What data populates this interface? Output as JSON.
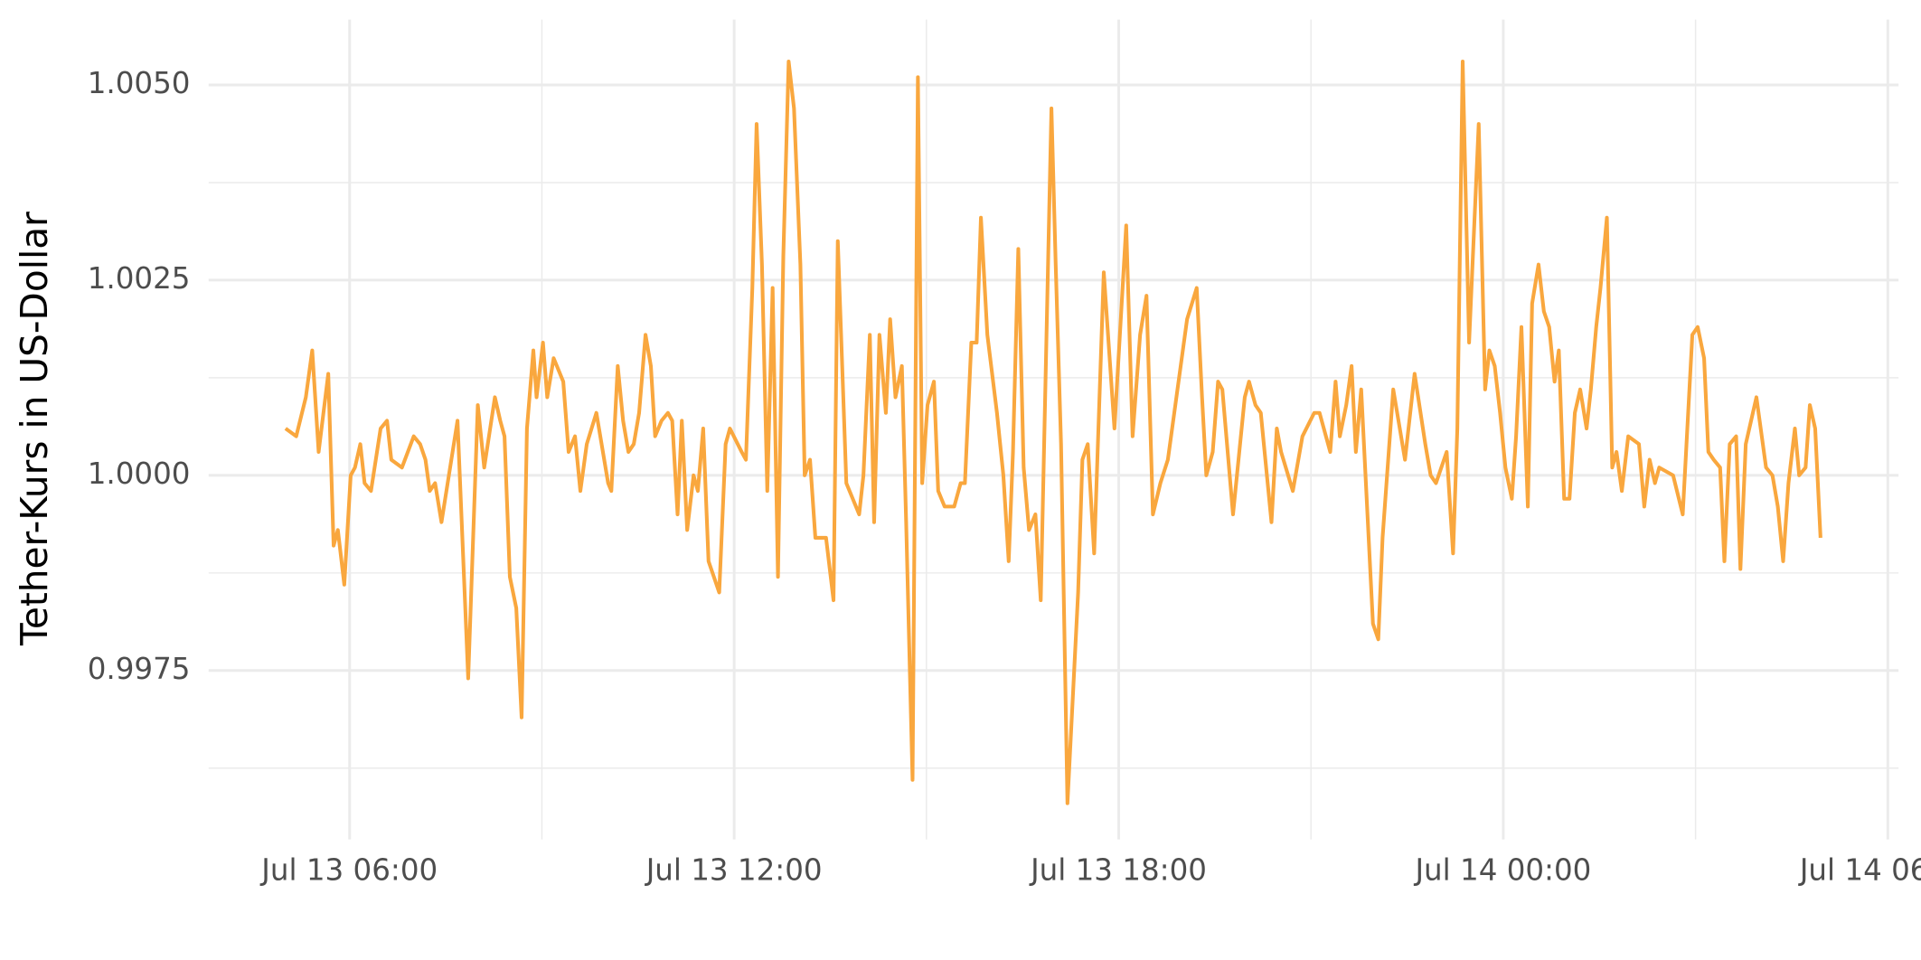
{
  "chart_data": {
    "type": "line",
    "ylabel": "Tether-Kurs in US-Dollar",
    "color": "#f9a73e",
    "grid": true,
    "xlim": [
      "Jul 13 03:48",
      "Jul 14 06:10"
    ],
    "xticks": [
      "Jul 13 06:00",
      "Jul 13 12:00",
      "Jul 13 18:00",
      "Jul 14 00:00",
      "Jul 14 06:00"
    ],
    "xminor": [
      "Jul 13 09:00",
      "Jul 13 15:00",
      "Jul 13 21:00",
      "Jul 14 03:00"
    ],
    "ylim": [
      0.9954,
      1.0059
    ],
    "yticks": [
      0.9975,
      {
        "value": 1.0,
        "label": "1.0000"
      },
      1.0025,
      {
        "value": 1.005,
        "label": "1.0050"
      }
    ],
    "yminor": [
      0.99625,
      0.99875,
      1.00125,
      1.00375
    ],
    "x": [
      "Jul 13 05:00",
      "Jul 13 05:10",
      "Jul 13 05:19",
      "Jul 13 05:25",
      "Jul 13 05:31",
      "Jul 13 05:40",
      "Jul 13 05:45",
      "Jul 13 05:49",
      "Jul 13 05:55",
      "Jul 13 06:01",
      "Jul 13 06:05",
      "Jul 13 06:10",
      "Jul 13 06:14",
      "Jul 13 06:20",
      "Jul 13 06:29",
      "Jul 13 06:35",
      "Jul 13 06:39",
      "Jul 13 06:49",
      "Jul 13 07:00",
      "Jul 13 07:06",
      "Jul 13 07:11",
      "Jul 13 07:15",
      "Jul 13 07:20",
      "Jul 13 07:26",
      "Jul 13 07:41",
      "Jul 13 07:51",
      "Jul 13 08:00",
      "Jul 13 08:06",
      "Jul 13 08:16",
      "Jul 13 08:21",
      "Jul 13 08:25",
      "Jul 13 08:30",
      "Jul 13 08:36",
      "Jul 13 08:41",
      "Jul 13 08:46",
      "Jul 13 08:52",
      "Jul 13 08:55",
      "Jul 13 09:01",
      "Jul 13 09:05",
      "Jul 13 09:11",
      "Jul 13 09:20",
      "Jul 13 09:25",
      "Jul 13 09:31",
      "Jul 13 09:36",
      "Jul 13 09:42",
      "Jul 13 09:51",
      "Jul 13 10:02",
      "Jul 13 10:05",
      "Jul 13 10:11",
      "Jul 13 10:16",
      "Jul 13 10:21",
      "Jul 13 10:26",
      "Jul 13 10:31",
      "Jul 13 10:37",
      "Jul 13 10:42",
      "Jul 13 10:46",
      "Jul 13 10:52",
      "Jul 13 10:58",
      "Jul 13 11:02",
      "Jul 13 11:07",
      "Jul 13 11:11",
      "Jul 13 11:16",
      "Jul 13 11:22",
      "Jul 13 11:26",
      "Jul 13 11:31",
      "Jul 13 11:36",
      "Jul 13 11:46",
      "Jul 13 11:52",
      "Jul 13 11:56",
      "Jul 13 12:07",
      "Jul 13 12:11",
      "Jul 13 12:17",
      "Jul 13 12:21",
      "Jul 13 12:26",
      "Jul 13 12:31",
      "Jul 13 12:36",
      "Jul 13 12:41",
      "Jul 13 12:46",
      "Jul 13 12:51",
      "Jul 13 12:56",
      "Jul 13 13:02",
      "Jul 13 13:06",
      "Jul 13 13:11",
      "Jul 13 13:16",
      "Jul 13 13:26",
      "Jul 13 13:33",
      "Jul 13 13:37",
      "Jul 13 13:45",
      "Jul 13 13:57",
      "Jul 13 14:01",
      "Jul 13 14:07",
      "Jul 13 14:11",
      "Jul 13 14:16",
      "Jul 13 14:22",
      "Jul 13 14:26",
      "Jul 13 14:31",
      "Jul 13 14:37",
      "Jul 13 14:41",
      "Jul 13 14:47",
      "Jul 13 14:52",
      "Jul 13 14:56",
      "Jul 13 15:01",
      "Jul 13 15:07",
      "Jul 13 15:11",
      "Jul 13 15:17",
      "Jul 13 15:26",
      "Jul 13 15:32",
      "Jul 13 15:36",
      "Jul 13 15:42",
      "Jul 13 15:47",
      "Jul 13 15:51",
      "Jul 13 15:57",
      "Jul 13 16:06",
      "Jul 13 16:12",
      "Jul 13 16:17",
      "Jul 13 16:21",
      "Jul 13 16:26",
      "Jul 13 16:31",
      "Jul 13 16:36",
      "Jul 13 16:42",
      "Jul 13 16:47",
      "Jul 13 16:57",
      "Jul 13 17:01",
      "Jul 13 17:06",
      "Jul 13 17:12",
      "Jul 13 17:22",
      "Jul 13 17:26",
      "Jul 13 17:31",
      "Jul 13 17:37",
      "Jul 13 17:46",
      "Jul 13 17:56",
      "Jul 13 18:07",
      "Jul 13 18:13",
      "Jul 13 18:20",
      "Jul 13 18:26",
      "Jul 13 18:32",
      "Jul 13 18:39",
      "Jul 13 18:46",
      "Jul 13 18:52",
      "Jul 13 19:04",
      "Jul 13 19:13",
      "Jul 13 19:18",
      "Jul 13 19:22",
      "Jul 13 19:28",
      "Jul 13 19:33",
      "Jul 13 19:37",
      "Jul 13 19:47",
      "Jul 13 19:58",
      "Jul 13 20:02",
      "Jul 13 20:08",
      "Jul 13 20:13",
      "Jul 13 20:23",
      "Jul 13 20:28",
      "Jul 13 20:32",
      "Jul 13 20:43",
      "Jul 13 20:52",
      "Jul 13 21:03",
      "Jul 13 21:08",
      "Jul 13 21:18",
      "Jul 13 21:23",
      "Jul 13 21:27",
      "Jul 13 21:33",
      "Jul 13 21:38",
      "Jul 13 21:42",
      "Jul 13 21:47",
      "Jul 13 21:58",
      "Jul 13 22:03",
      "Jul 13 22:07",
      "Jul 13 22:17",
      "Jul 13 22:28",
      "Jul 13 22:37",
      "Jul 13 22:47",
      "Jul 13 22:52",
      "Jul 13 22:57",
      "Jul 13 23:07",
      "Jul 13 23:13",
      "Jul 13 23:17",
      "Jul 13 23:22",
      "Jul 13 23:28",
      "Jul 13 23:37",
      "Jul 13 23:43",
      "Jul 13 23:47",
      "Jul 13 23:52",
      "Jul 13 23:57",
      "Jul 14 00:02",
      "Jul 14 00:08",
      "Jul 14 00:12",
      "Jul 14 00:17",
      "Jul 14 00:23",
      "Jul 14 00:27",
      "Jul 14 00:33",
      "Jul 14 00:38",
      "Jul 14 00:43",
      "Jul 14 00:48",
      "Jul 14 00:52",
      "Jul 14 00:57",
      "Jul 14 01:02",
      "Jul 14 01:07",
      "Jul 14 01:12",
      "Jul 14 01:18",
      "Jul 14 01:22",
      "Jul 14 01:27",
      "Jul 14 01:31",
      "Jul 14 01:37",
      "Jul 14 01:42",
      "Jul 14 01:46",
      "Jul 14 01:51",
      "Jul 14 01:57",
      "Jul 14 02:07",
      "Jul 14 02:12",
      "Jul 14 02:17",
      "Jul 14 02:22",
      "Jul 14 02:26",
      "Jul 14 02:39",
      "Jul 14 02:48",
      "Jul 14 02:57",
      "Jul 14 03:02",
      "Jul 14 03:08",
      "Jul 14 03:12",
      "Jul 14 03:17",
      "Jul 14 03:23",
      "Jul 14 03:27",
      "Jul 14 03:32",
      "Jul 14 03:38",
      "Jul 14 03:42",
      "Jul 14 03:47",
      "Jul 14 03:52",
      "Jul 14 03:57",
      "Jul 14 04:02",
      "Jul 14 04:06",
      "Jul 14 04:12",
      "Jul 14 04:17",
      "Jul 14 04:22",
      "Jul 14 04:27",
      "Jul 14 04:33",
      "Jul 14 04:37",
      "Jul 14 04:43",
      "Jul 14 04:47",
      "Jul 14 04:52",
      "Jul 14 04:57"
    ],
    "values": [
      1.0006,
      1.0005,
      1.001,
      1.0016,
      1.0003,
      1.0013,
      0.9991,
      0.9993,
      0.9986,
      1.0,
      1.0001,
      1.0004,
      0.9999,
      0.9998,
      1.0006,
      1.0007,
      1.0002,
      1.0001,
      1.0005,
      1.0004,
      1.0002,
      0.9998,
      0.9999,
      0.9994,
      1.0007,
      0.9974,
      1.0009,
      1.0001,
      1.001,
      1.0007,
      1.0005,
      0.9987,
      0.9983,
      0.9969,
      1.0006,
      1.0016,
      1.001,
      1.0017,
      1.001,
      1.0015,
      1.0012,
      1.0003,
      1.0005,
      0.9998,
      1.0004,
      1.0008,
      0.9999,
      0.9998,
      1.0014,
      1.0007,
      1.0003,
      1.0004,
      1.0008,
      1.0018,
      1.0014,
      1.0005,
      1.0007,
      1.0008,
      1.0007,
      0.9995,
      1.0007,
      0.9993,
      1.0,
      0.9998,
      1.0006,
      0.9989,
      0.9985,
      1.0004,
      1.0006,
      1.0003,
      1.0002,
      1.0024,
      1.0045,
      1.0027,
      0.9998,
      1.0024,
      0.9987,
      1.0028,
      1.0053,
      1.0047,
      1.0027,
      1.0,
      1.0002,
      0.9992,
      0.9992,
      0.9984,
      1.003,
      0.9999,
      0.9995,
      1.0,
      1.0018,
      0.9994,
      1.0018,
      1.0008,
      1.002,
      1.001,
      1.0014,
      0.9994,
      0.9961,
      1.0051,
      0.9999,
      1.0009,
      1.0012,
      0.9998,
      0.9996,
      0.9996,
      0.9999,
      0.9999,
      1.0017,
      1.0017,
      1.0033,
      1.0018,
      1.0008,
      1.0,
      0.9989,
      1.0003,
      1.0029,
      1.0001,
      0.9993,
      0.9995,
      0.9984,
      1.0047,
      1.0027,
      1.0004,
      0.9958,
      0.9985,
      1.0002,
      1.0004,
      0.999,
      1.0026,
      1.0006,
      1.0032,
      1.0005,
      1.0018,
      1.0023,
      0.9995,
      0.9999,
      1.0002,
      1.0008,
      1.002,
      1.0024,
      1.001,
      1.0,
      1.0003,
      1.0012,
      1.0011,
      0.9995,
      1.001,
      1.0012,
      1.0009,
      1.0008,
      0.9994,
      1.0006,
      1.0003,
      0.9998,
      1.0005,
      1.0008,
      1.0008,
      1.0003,
      1.0012,
      1.0005,
      1.0009,
      1.0014,
      1.0003,
      1.0011,
      0.9981,
      0.9979,
      0.9992,
      1.0011,
      1.0002,
      1.0013,
      1.0004,
      1.0,
      0.9999,
      1.0003,
      0.999,
      1.0006,
      1.0053,
      1.0017,
      1.0045,
      1.0011,
      1.0016,
      1.0014,
      1.0008,
      1.0001,
      0.9997,
      1.0005,
      1.0019,
      0.9996,
      1.0022,
      1.0027,
      1.0021,
      1.0019,
      1.0012,
      1.0016,
      0.9997,
      0.9997,
      1.0008,
      1.0011,
      1.0006,
      1.0011,
      1.0019,
      1.0024,
      1.0033,
      1.0001,
      1.0003,
      0.9998,
      1.0005,
      1.0004,
      0.9996,
      1.0002,
      0.9999,
      1.0001,
      1.0,
      0.9995,
      1.0018,
      1.0019,
      1.0015,
      1.0003,
      1.0002,
      1.0001,
      0.9989,
      1.0004,
      1.0005,
      0.9988,
      1.0004,
      1.0007,
      1.001,
      1.0005,
      1.0001,
      1.0,
      0.9996,
      0.9989,
      0.9999,
      1.0006,
      1.0,
      1.0001,
      1.0009,
      1.0006,
      0.9992
    ]
  }
}
